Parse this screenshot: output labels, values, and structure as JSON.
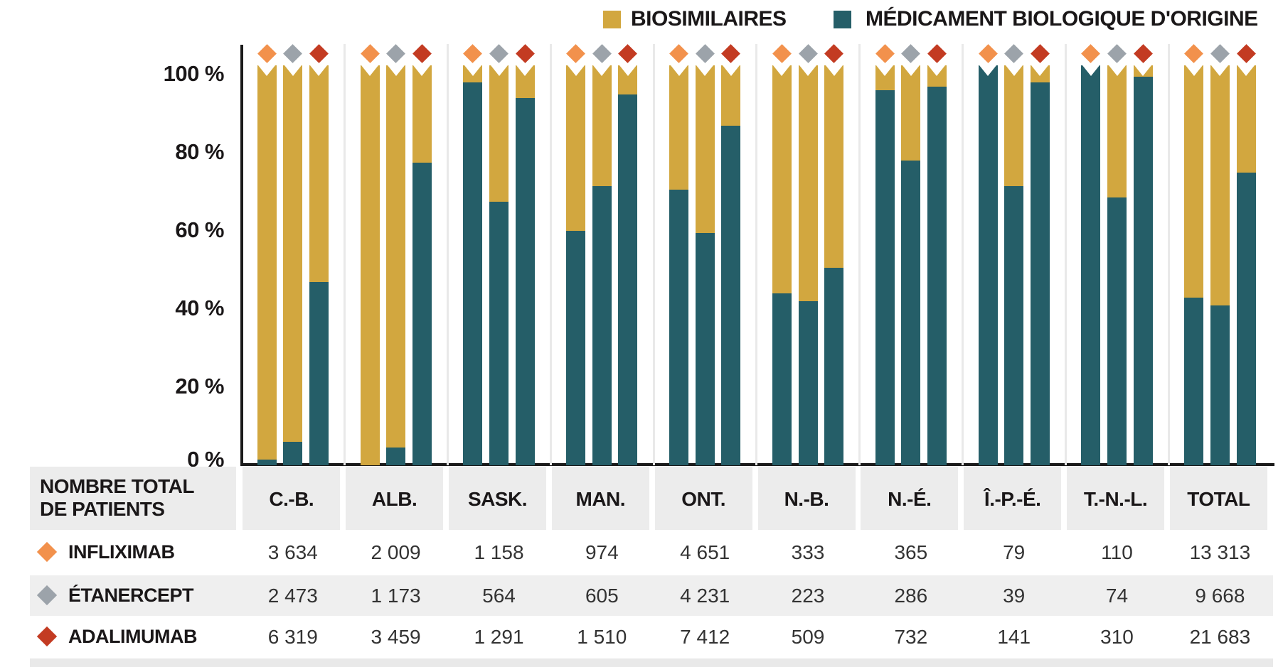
{
  "chart_data": {
    "type": "bar",
    "subtype": "stacked-percent-grouped",
    "legend": [
      {
        "label": "BIOSIMILAIRES",
        "color": "#d2a73f"
      },
      {
        "label": "MÉDICAMENT BIOLOGIQUE D'ORIGINE",
        "color": "#255e68"
      }
    ],
    "legend_position": "top",
    "y_ticks": [
      "100 %",
      "80 %",
      "60 %",
      "40 %",
      "20 %",
      "0 %"
    ],
    "ylim": [
      0,
      100
    ],
    "grid": false,
    "categories": [
      "C.-B.",
      "ALB.",
      "SASK.",
      "MAN.",
      "ONT.",
      "N.-B.",
      "N.-É.",
      "Î.-P.-É.",
      "T.-N.-L.",
      "TOTAL"
    ],
    "drugs": [
      {
        "name": "INFLIXIMAB",
        "marker_color": "#f2914c"
      },
      {
        "name": "ÉTANERCEPT",
        "marker_color": "#9ca3aa"
      },
      {
        "name": "ADALIMUMAB",
        "marker_color": "#c33b22"
      }
    ],
    "series": [
      {
        "name": "BIOSIMILAIRES",
        "color": "#d2a73f",
        "position": "top",
        "values_pct": [
          [
            98.5,
            94,
            53
          ],
          [
            100,
            95.5,
            22.5
          ],
          [
            2,
            32.5,
            6
          ],
          [
            40,
            28.5,
            5
          ],
          [
            29.5,
            40.5,
            13
          ],
          [
            56,
            58,
            49.5
          ],
          [
            4,
            22,
            3
          ],
          [
            0,
            28.5,
            2
          ],
          [
            0,
            31.5,
            0.5
          ],
          [
            57,
            59,
            25
          ]
        ]
      },
      {
        "name": "MÉDICAMENT BIOLOGIQUE D'ORIGINE",
        "color": "#255e68",
        "position": "bottom",
        "values_pct": [
          [
            1.5,
            6,
            47
          ],
          [
            0,
            4.5,
            77.5
          ],
          [
            98,
            67.5,
            94
          ],
          [
            60,
            71.5,
            95
          ],
          [
            70.5,
            59.5,
            87
          ],
          [
            44,
            42,
            50.5
          ],
          [
            96,
            78,
            97
          ],
          [
            100,
            71.5,
            98
          ],
          [
            100,
            68.5,
            99.5
          ],
          [
            43,
            41,
            75
          ]
        ]
      }
    ]
  },
  "table": {
    "row_header_line1": "NOMBRE TOTAL",
    "row_header_line2": "DE PATIENTS",
    "columns": [
      "C.-B.",
      "ALB.",
      "SASK.",
      "MAN.",
      "ONT.",
      "N.-B.",
      "N.-É.",
      "Î.-P.-É.",
      "T.-N.-L.",
      "TOTAL"
    ],
    "rows": [
      {
        "drug": "INFLIXIMAB",
        "marker_color": "#f2914c",
        "values": [
          "3 634",
          "2 009",
          "1 158",
          "974",
          "4 651",
          "333",
          "365",
          "79",
          "110",
          "13 313"
        ]
      },
      {
        "drug": "ÉTANERCEPT",
        "marker_color": "#9ca3aa",
        "values": [
          "2 473",
          "1 173",
          "564",
          "605",
          "4 231",
          "223",
          "286",
          "39",
          "74",
          "9 668"
        ]
      },
      {
        "drug": "ADALIMUMAB",
        "marker_color": "#c33b22",
        "values": [
          "6 319",
          "3 459",
          "1 291",
          "1 510",
          "7 412",
          "509",
          "732",
          "141",
          "310",
          "21 683"
        ]
      }
    ]
  },
  "colors": {
    "biosimilar": "#d2a73f",
    "originator": "#255e68",
    "infliximab_marker": "#f2914c",
    "etanercept_marker": "#9ca3aa",
    "adalimumab_marker": "#c33b22",
    "axis": "#1a1a1a",
    "header_cell_bg": "#ececec",
    "alt_row_bg": "#efefef",
    "bottom_strip_bg": "#e9e9e9",
    "text": "#1a1718"
  }
}
